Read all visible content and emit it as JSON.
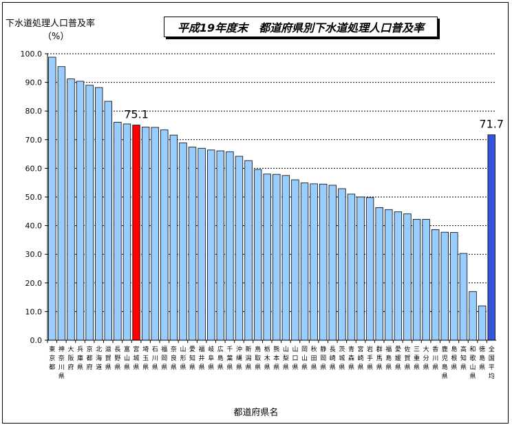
{
  "chart_data": {
    "type": "bar",
    "title": "平成19年度末　都道府県別下水道処理人口普及率",
    "ylabel": "下水道処理人口普及率",
    "yunit": "（%）",
    "xlabel": "都道府県名",
    "ylim": [
      0,
      100
    ],
    "yticks": [
      "0.0",
      "10.0",
      "20.0",
      "30.0",
      "40.0",
      "50.0",
      "60.0",
      "70.0",
      "80.0",
      "90.0",
      "100.0"
    ],
    "grid": true,
    "categories": [
      "東京都",
      "神奈川県",
      "大阪府",
      "兵庫県",
      "京都府",
      "北海道",
      "滋賀県",
      "長野県",
      "富山県",
      "宮城県",
      "埼玉県",
      "石川県",
      "福岡県",
      "奈良県",
      "山形県",
      "愛知県",
      "福井県",
      "岐阜県",
      "広島県",
      "千葉県",
      "沖縄県",
      "新潟県",
      "鳥取県",
      "栃木県",
      "熊本県",
      "山梨県",
      "山口県",
      "岡山県",
      "秋田県",
      "静岡県",
      "長崎県",
      "茨城県",
      "青森県",
      "宮崎県",
      "岩手県",
      "群馬県",
      "福島県",
      "愛媛県",
      "佐賀県",
      "三重県",
      "大分県",
      "香川県",
      "鹿児島県",
      "島根県",
      "高知県",
      "和歌山県",
      "徳島県",
      "全国平均"
    ],
    "values": [
      98.8,
      95.5,
      91.2,
      90.4,
      89.0,
      88.2,
      83.4,
      76.1,
      75.5,
      75.1,
      74.4,
      74.3,
      73.4,
      71.6,
      68.9,
      67.4,
      67.0,
      66.4,
      66.1,
      65.8,
      64.2,
      62.7,
      59.6,
      58.0,
      57.9,
      57.5,
      56.0,
      54.9,
      54.6,
      54.5,
      54.1,
      52.9,
      51.0,
      50.0,
      49.8,
      46.3,
      45.6,
      44.8,
      44.1,
      42.2,
      42.2,
      38.6,
      37.7,
      37.6,
      30.3,
      17.0,
      12.0,
      71.7
    ],
    "highlights": [
      {
        "category": "宮城県",
        "label": "75.1",
        "color": "#ff0000"
      },
      {
        "category": "全国平均",
        "label": "71.7",
        "color": "#3355dd"
      }
    ],
    "bar_color": "#99ccff"
  }
}
